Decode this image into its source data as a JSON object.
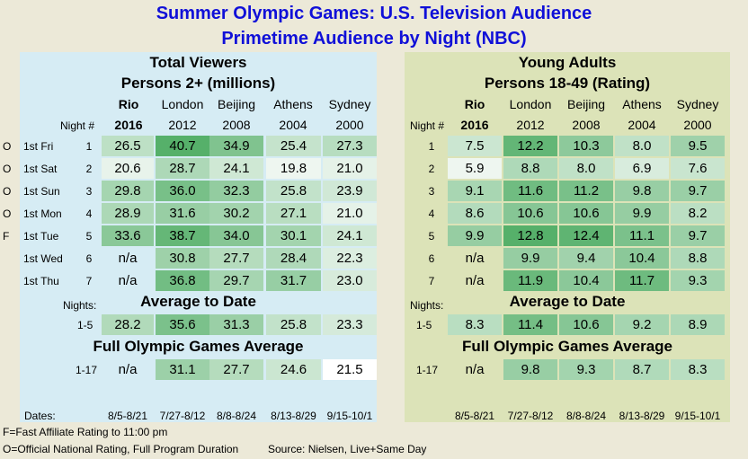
{
  "title_line1": "Summer Olympic Games: U.S. Television Audience",
  "title_line2": "Primetime Audience by Night (NBC)",
  "years_city": [
    "Rio",
    "London",
    "Beijing",
    "Athens",
    "Sydney"
  ],
  "years": [
    "2016",
    "2012",
    "2008",
    "2004",
    "2000"
  ],
  "night_header": "Night #",
  "nights_label": "Nights:",
  "dates_label": "Dates:",
  "dates": [
    "8/5-8/21",
    "7/27-8/12",
    "8/8-8/24",
    "8/13-8/29",
    "9/15-10/1"
  ],
  "section_avg": "Average to Date",
  "section_full": "Full Olympic Games Average",
  "avg_range": "1-5",
  "full_range": "1-17",
  "rows": [
    {
      "flag": "O",
      "day": "1st Fri",
      "num": "1"
    },
    {
      "flag": "O",
      "day": "1st Sat",
      "num": "2"
    },
    {
      "flag": "O",
      "day": "1st Sun",
      "num": "3"
    },
    {
      "flag": "O",
      "day": "1st Mon",
      "num": "4"
    },
    {
      "flag": "F",
      "day": "1st Tue",
      "num": "5"
    },
    {
      "flag": "",
      "day": "1st Wed",
      "num": "6"
    },
    {
      "flag": "",
      "day": "1st Thu",
      "num": "7"
    }
  ],
  "viewers": {
    "title1": "Total Viewers",
    "title2": "Persons 2+ (millions)",
    "values": [
      [
        "26.5",
        "40.7",
        "34.9",
        "25.4",
        "27.3"
      ],
      [
        "20.6",
        "28.7",
        "24.1",
        "19.8",
        "21.0"
      ],
      [
        "29.8",
        "36.0",
        "32.3",
        "25.8",
        "23.9"
      ],
      [
        "28.9",
        "31.6",
        "30.2",
        "27.1",
        "21.0"
      ],
      [
        "33.6",
        "38.7",
        "34.0",
        "30.1",
        "24.1"
      ],
      [
        "n/a",
        "30.8",
        "27.7",
        "28.4",
        "22.3"
      ],
      [
        "n/a",
        "36.8",
        "29.7",
        "31.7",
        "23.0"
      ]
    ],
    "avg": [
      "28.2",
      "35.6",
      "31.3",
      "25.8",
      "23.3"
    ],
    "full": [
      "n/a",
      "31.1",
      "27.7",
      "24.6",
      "21.5"
    ]
  },
  "adults": {
    "title1": "Young Adults",
    "title2": "Persons 18-49 (Rating)",
    "values": [
      [
        "7.5",
        "12.2",
        "10.3",
        "8.0",
        "9.5"
      ],
      [
        "5.9",
        "8.8",
        "8.0",
        "6.9",
        "7.6"
      ],
      [
        "9.1",
        "11.6",
        "11.2",
        "9.8",
        "9.7"
      ],
      [
        "8.6",
        "10.6",
        "10.6",
        "9.9",
        "8.2"
      ],
      [
        "9.9",
        "12.8",
        "12.4",
        "11.1",
        "9.7"
      ],
      [
        "n/a",
        "9.9",
        "9.4",
        "10.4",
        "8.8"
      ],
      [
        "n/a",
        "11.9",
        "10.4",
        "11.7",
        "9.3"
      ]
    ],
    "avg": [
      "8.3",
      "11.4",
      "10.6",
      "9.2",
      "8.9"
    ],
    "full": [
      "n/a",
      "9.8",
      "9.3",
      "8.7",
      "8.3"
    ]
  },
  "footnote1": "F=Fast Affiliate Rating to 11:00 pm",
  "footnote2": "O=Official National Rating, Full Program Duration",
  "source": "Source: Nielsen, Live+Same Day"
}
